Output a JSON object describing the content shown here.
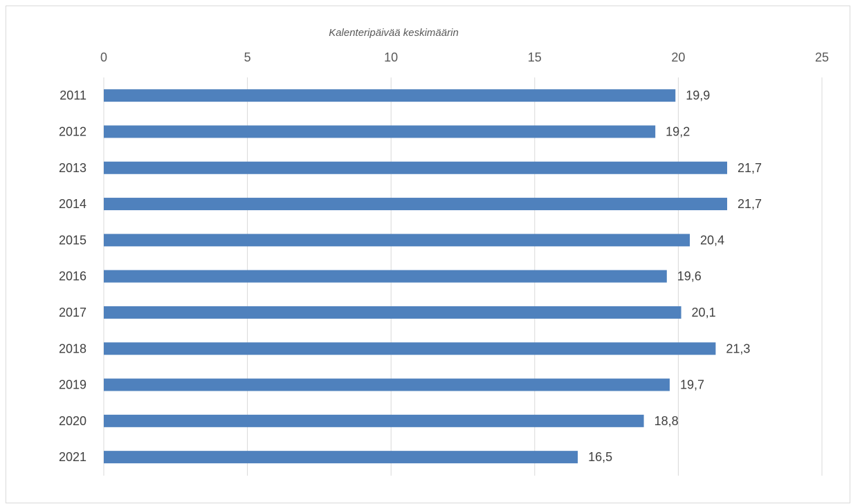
{
  "chart_data": {
    "type": "bar",
    "orientation": "horizontal",
    "title": "",
    "xlabel": "Kalenteripäivää keskimäärin",
    "ylabel": "",
    "xlim": [
      0,
      25
    ],
    "x_ticks": [
      "0",
      "5",
      "10",
      "15",
      "20",
      "25"
    ],
    "x_axis_position": "top",
    "grid": true,
    "legend": "none",
    "categories": [
      "2011",
      "2012",
      "2013",
      "2014",
      "2015",
      "2016",
      "2017",
      "2018",
      "2019",
      "2020",
      "2021"
    ],
    "values": [
      19.9,
      19.2,
      21.7,
      21.7,
      20.4,
      19.6,
      20.1,
      21.3,
      19.7,
      18.8,
      16.5
    ],
    "data_labels": [
      "19,9",
      "19,2",
      "21,7",
      "21,7",
      "20,4",
      "19,6",
      "20,1",
      "21,3",
      "19,7",
      "18,8",
      "16,5"
    ],
    "colors": {
      "bar": "#4f81bd",
      "grid": "#d9d9d9",
      "text": "#595959"
    }
  }
}
